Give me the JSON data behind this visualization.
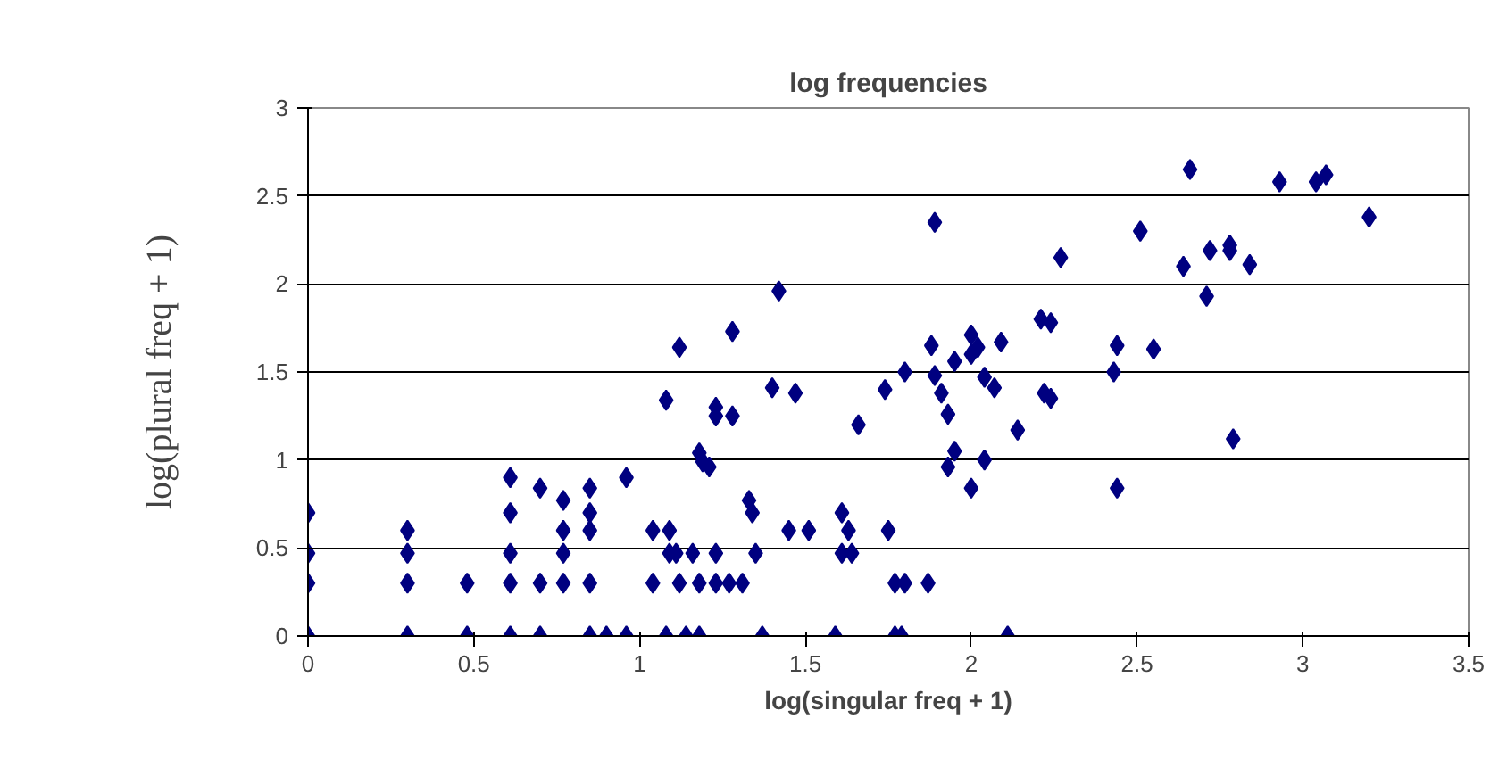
{
  "chart_data": {
    "type": "scatter",
    "title": "log frequencies",
    "xlabel": "log(singular freq + 1)",
    "ylabel": "log(plural freq + 1)",
    "xlim": [
      0,
      3.5
    ],
    "ylim": [
      0,
      3
    ],
    "xticks": [
      0,
      0.5,
      1,
      1.5,
      2,
      2.5,
      3,
      3.5
    ],
    "yticks": [
      0,
      0.5,
      1,
      1.5,
      2,
      2.5,
      3
    ],
    "grid": "y",
    "marker": "diamond",
    "series": [
      {
        "color": "#000080",
        "x": [
          0,
          0,
          0,
          0,
          0.3,
          0.3,
          0.3,
          0.3,
          0.48,
          0.48,
          0.61,
          0.61,
          0.61,
          0.61,
          0.61,
          0.7,
          0.7,
          0.7,
          0.77,
          0.77,
          0.77,
          0.77,
          0.85,
          0.85,
          0.85,
          0.85,
          0.85,
          0.9,
          0.96,
          0.96,
          1.04,
          1.09,
          1.04,
          1.09,
          1.11,
          1.16,
          1.08,
          1.14,
          1.18,
          1.12,
          1.18,
          1.23,
          1.27,
          1.31,
          1.23,
          1.35,
          1.37,
          1.08,
          1.12,
          1.18,
          1.19,
          1.21,
          1.23,
          1.23,
          1.28,
          1.28,
          1.33,
          1.34,
          1.42,
          1.4,
          1.47,
          1.45,
          1.51,
          1.59,
          1.61,
          1.63,
          1.61,
          1.64,
          1.66,
          1.74,
          1.75,
          1.77,
          1.77,
          1.79,
          1.8,
          1.87,
          1.89,
          1.8,
          1.88,
          1.89,
          1.91,
          1.93,
          1.95,
          2.0,
          2.0,
          2.02,
          2.04,
          2.07,
          2.09,
          1.95,
          1.93,
          2.04,
          2.0,
          2.11,
          2.14,
          2.21,
          2.24,
          2.22,
          2.24,
          2.27,
          2.43,
          2.44,
          2.44,
          2.55,
          2.51,
          2.66,
          2.64,
          2.71,
          2.72,
          2.78,
          2.78,
          2.84,
          2.79,
          2.93,
          3.04,
          3.07,
          3.2
        ],
        "values": [
          0.7,
          0.47,
          0.3,
          0,
          0.6,
          0.47,
          0.3,
          0,
          0.3,
          0,
          0.9,
          0.7,
          0.47,
          0.3,
          0,
          0.84,
          0.3,
          0,
          0.77,
          0.6,
          0.47,
          0.3,
          0.84,
          0.7,
          0.6,
          0.3,
          0,
          0,
          0,
          0.9,
          0.6,
          0.6,
          0.3,
          0.47,
          0.47,
          0.47,
          0,
          0,
          0,
          0.3,
          0.3,
          0.3,
          0.3,
          0.3,
          0.47,
          0.47,
          0,
          1.34,
          1.64,
          1.04,
          0.99,
          0.96,
          1.3,
          1.25,
          1.25,
          1.73,
          0.77,
          0.7,
          1.96,
          1.41,
          1.38,
          0.6,
          0.6,
          0,
          0.7,
          0.6,
          0.47,
          0.47,
          1.2,
          1.4,
          0.6,
          0.3,
          0,
          0,
          0.3,
          0.3,
          2.35,
          1.5,
          1.65,
          1.48,
          1.38,
          1.26,
          1.56,
          1.71,
          1.6,
          1.64,
          1.47,
          1.41,
          1.67,
          1.05,
          0.96,
          1.0,
          0.84,
          0,
          1.17,
          1.8,
          1.78,
          1.38,
          1.35,
          2.15,
          1.5,
          1.65,
          0.84,
          1.63,
          2.3,
          2.65,
          2.1,
          1.93,
          2.19,
          2.22,
          2.19,
          2.11,
          1.12,
          2.58,
          2.58,
          2.62,
          2.38
        ]
      }
    ]
  }
}
